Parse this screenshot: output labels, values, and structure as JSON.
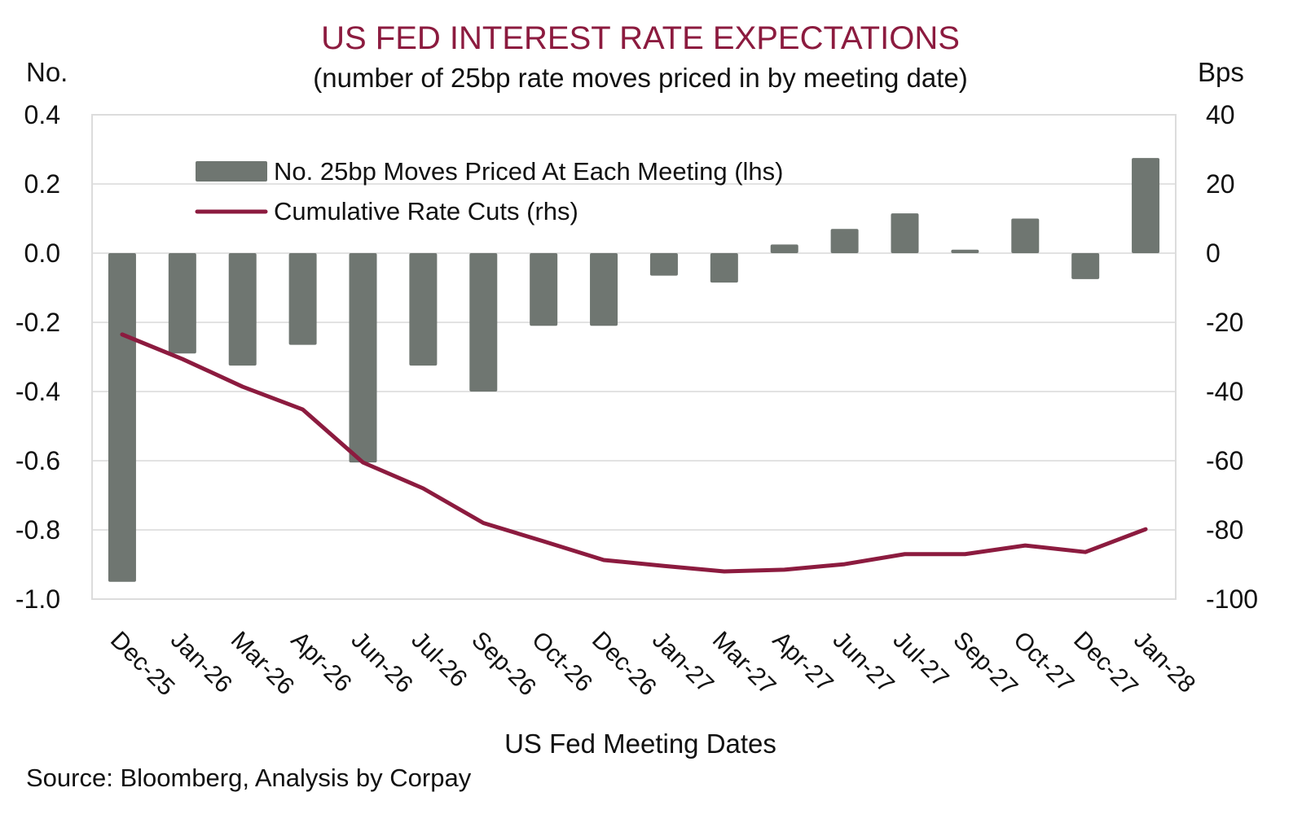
{
  "chart_data": {
    "type": "bar",
    "title": "US FED INTEREST RATE EXPECTATIONS",
    "subtitle": "(number of 25bp rate moves priced in by meeting date)",
    "xlabel": "US Fed Meeting Dates",
    "ylabel_left": "No.",
    "ylabel_right": "Bps",
    "source": "Source: Bloomberg, Analysis by Corpay",
    "categories": [
      "Dec-25",
      "Jan-26",
      "Mar-26",
      "Apr-26",
      "Jun-26",
      "Jul-26",
      "Sep-26",
      "Oct-26",
      "Dec-26",
      "Jan-27",
      "Mar-27",
      "Apr-27",
      "Jun-27",
      "Jul-27",
      "Sep-27",
      "Oct-27",
      "Dec-27",
      "Jan-28"
    ],
    "ylim_left": [
      -1.0,
      0.4
    ],
    "ylim_right": [
      -100,
      40
    ],
    "yticks_left": [
      "0.4",
      "0.2",
      "0.0",
      "-0.2",
      "-0.4",
      "-0.6",
      "-0.8",
      "-1.0"
    ],
    "yticks_left_values": [
      0.4,
      0.2,
      0.0,
      -0.2,
      -0.4,
      -0.6,
      -0.8,
      -1.0
    ],
    "yticks_right": [
      "40",
      "20",
      "0",
      "-20",
      "-40",
      "-60",
      "-80",
      "-100"
    ],
    "grid": true,
    "legend_position": "top-left",
    "series": [
      {
        "name": "No. 25bp Moves Priced At Each Meeting (lhs)",
        "type": "bar",
        "axis": "left",
        "color": "#6f7671",
        "values": [
          -0.95,
          -0.29,
          -0.325,
          -0.265,
          -0.605,
          -0.325,
          -0.4,
          -0.21,
          -0.21,
          -0.065,
          -0.085,
          0.025,
          0.07,
          0.115,
          0.01,
          0.1,
          -0.075,
          0.275
        ]
      },
      {
        "name": "Cumulative Rate Cuts (rhs)",
        "type": "line",
        "axis": "right",
        "color": "#8c1b3f",
        "values": [
          -23.5,
          -30.6,
          -38.6,
          -45.2,
          -60.5,
          -68.0,
          -78.0,
          -83.3,
          -88.7,
          -90.4,
          -92.0,
          -91.5,
          -89.9,
          -87.0,
          -87.0,
          -84.5,
          -86.4,
          -79.8
        ]
      }
    ]
  }
}
